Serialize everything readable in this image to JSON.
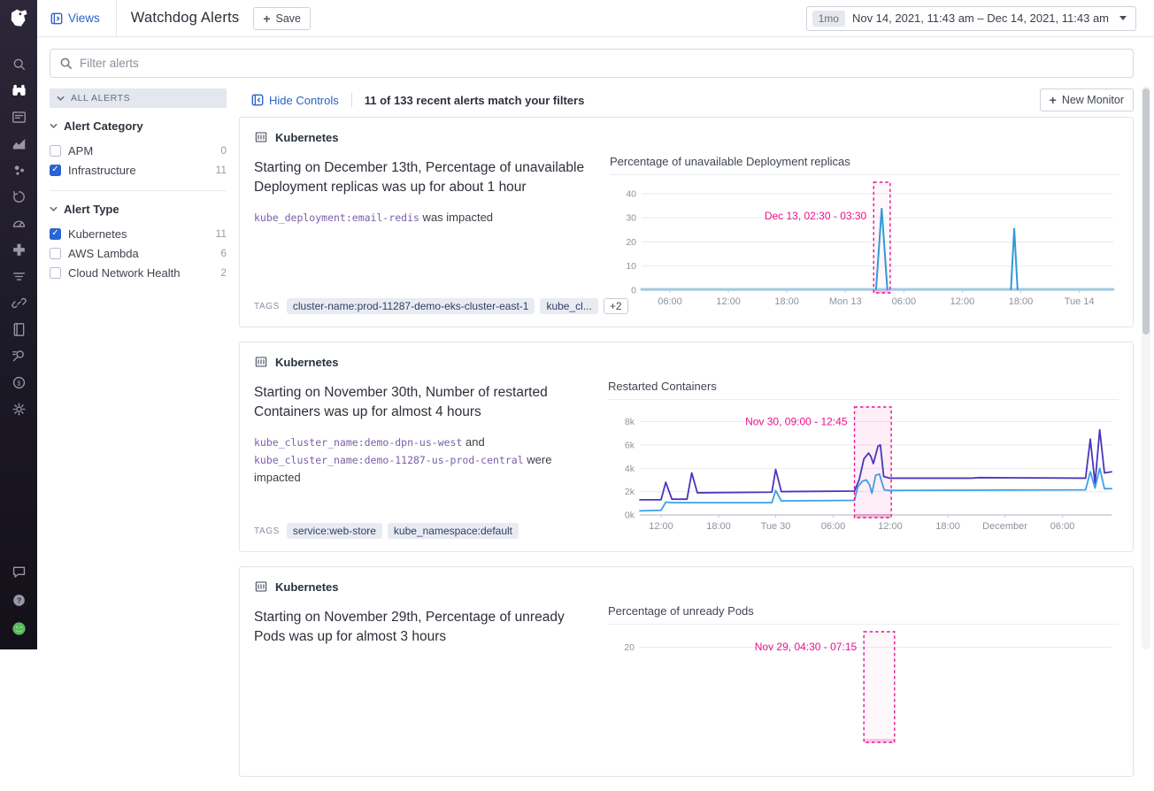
{
  "header": {
    "views_label": "Views",
    "title": "Watchdog Alerts",
    "save_label": "Save",
    "time_badge": "1mo",
    "time_range": "Nov 14, 2021, 11:43 am – Dec 14, 2021, 11:43 am"
  },
  "filter": {
    "placeholder": "Filter alerts"
  },
  "sidebar": {
    "active": "watchdog",
    "items": [
      "search",
      "watchdog",
      "dashboards",
      "metrics",
      "infrastructure",
      "monitors",
      "apm",
      "integrations",
      "logs",
      "synthetics",
      "notebooks",
      "security",
      "billing",
      "settings"
    ],
    "bottom_items": [
      "support-chat",
      "help",
      "avatar"
    ]
  },
  "facets": {
    "all_alerts_label": "ALL ALERTS",
    "sections": [
      {
        "title": "Alert Category",
        "items": [
          {
            "label": "APM",
            "count": "0",
            "checked": false
          },
          {
            "label": "Infrastructure",
            "count": "11",
            "checked": true
          }
        ]
      },
      {
        "title": "Alert Type",
        "items": [
          {
            "label": "Kubernetes",
            "count": "11",
            "checked": true
          },
          {
            "label": "AWS Lambda",
            "count": "6",
            "checked": false
          },
          {
            "label": "Cloud Network Health",
            "count": "2",
            "checked": false
          }
        ]
      }
    ]
  },
  "controls": {
    "hide_controls_label": "Hide Controls",
    "match_text": "11 of 133 recent alerts match your filters",
    "new_monitor_label": "New Monitor"
  },
  "alerts": [
    {
      "source": "Kubernetes",
      "title": "Starting on December 13th, Percentage of unavailable Deployment replicas was up for about 1 hour",
      "impact": [
        {
          "mono": "kube_deployment:email-redis",
          "text": " was impacted"
        }
      ],
      "tags_label": "TAGS",
      "tags": [
        "cluster-name:prod-11287-demo-eks-cluster-east-1",
        "kube_cl..."
      ],
      "tags_more": "+2"
    },
    {
      "source": "Kubernetes",
      "title": "Starting on November 30th, Number of restarted Containers was up for almost 4 hours",
      "impact": [
        {
          "mono": "kube_cluster_name:demo-dpn-us-west",
          "text": " and"
        },
        {
          "mono": "kube_cluster_name:demo-11287-us-prod-central",
          "text": " were impacted"
        }
      ],
      "tags_label": "TAGS",
      "tags": [
        "service:web-store",
        "kube_namespace:default"
      ]
    },
    {
      "source": "Kubernetes",
      "title": "Starting on November 29th, Percentage of unready Pods was up for almost 3 hours"
    }
  ],
  "colors": {
    "link_blue": "#2b63c7",
    "checkbox_blue": "#2a64d2",
    "anomaly_pink": "#ec128f",
    "line_blue": "#2f9bd6",
    "line_light_blue": "#a6cbe4",
    "line_purple": "#4a35bd",
    "line_sky": "#3e9ee8",
    "sidebar_bg": "#1c1926",
    "avatar_green": "#5cb85c"
  },
  "chart_data": [
    {
      "type": "line",
      "title": "Percentage of unavailable Deployment replicas",
      "ylim": [
        0,
        44
      ],
      "yticks": [
        [
          0,
          "0"
        ],
        [
          10,
          "10"
        ],
        [
          20,
          "20"
        ],
        [
          30,
          "30"
        ],
        [
          40,
          "40"
        ]
      ],
      "xticks": [
        [
          0.06,
          "06:00"
        ],
        [
          0.184,
          "12:00"
        ],
        [
          0.308,
          "18:00"
        ],
        [
          0.432,
          "Mon 13"
        ],
        [
          0.556,
          "06:00"
        ],
        [
          0.68,
          "12:00"
        ],
        [
          0.804,
          "18:00"
        ],
        [
          0.928,
          "Tue 14"
        ]
      ],
      "series": [
        {
          "name": "baseline",
          "color": "#a6cbe4",
          "width": 3,
          "points": [
            [
              0,
              0.35
            ],
            [
              1,
              0.35
            ]
          ]
        },
        {
          "name": "anomaly-spike-1",
          "color": "#2f9bd6",
          "width": 2,
          "points": [
            [
              0.497,
              0.35
            ],
            [
              0.509,
              33.8
            ],
            [
              0.521,
              0.35
            ]
          ]
        },
        {
          "name": "anomaly-spike-2",
          "color": "#2f9bd6",
          "width": 2,
          "points": [
            [
              0.783,
              0.35
            ],
            [
              0.79,
              25.5
            ],
            [
              0.797,
              0.35
            ]
          ]
        }
      ],
      "highlight": {
        "x1": 0.492,
        "x2": 0.527,
        "label": "Dec 13, 02:30 - 03:30",
        "label_y": 0.3
      }
    },
    {
      "type": "line",
      "title": "Restarted Containers",
      "ylim": [
        0,
        9.1
      ],
      "yticks": [
        [
          0,
          "0k"
        ],
        [
          2,
          "2k"
        ],
        [
          4,
          "4k"
        ],
        [
          6,
          "6k"
        ],
        [
          8,
          "8k"
        ]
      ],
      "xticks": [
        [
          0.045,
          "12:00"
        ],
        [
          0.167,
          "18:00"
        ],
        [
          0.288,
          "Tue 30"
        ],
        [
          0.41,
          "06:00"
        ],
        [
          0.531,
          "12:00"
        ],
        [
          0.653,
          "18:00"
        ],
        [
          0.774,
          "December"
        ],
        [
          0.896,
          "06:00"
        ]
      ],
      "series": [
        {
          "name": "kube_cluster_name:demo-dpn-us-west",
          "color": "#4a35bd",
          "width": 1.8,
          "points": [
            [
              0,
              1.3
            ],
            [
              0.045,
              1.3
            ],
            [
              0.055,
              2.8
            ],
            [
              0.068,
              1.35
            ],
            [
              0.1,
              1.35
            ],
            [
              0.11,
              3.6
            ],
            [
              0.122,
              1.9
            ],
            [
              0.28,
              1.95
            ],
            [
              0.288,
              3.9
            ],
            [
              0.3,
              2.0
            ],
            [
              0.455,
              2.05
            ],
            [
              0.465,
              3.0
            ],
            [
              0.475,
              4.8
            ],
            [
              0.485,
              5.3
            ],
            [
              0.49,
              5.0
            ],
            [
              0.495,
              4.4
            ],
            [
              0.505,
              5.9
            ],
            [
              0.51,
              6.0
            ],
            [
              0.517,
              3.3
            ],
            [
              0.53,
              3.15
            ],
            [
              0.7,
              3.15
            ],
            [
              0.72,
              3.2
            ],
            [
              0.945,
              3.15
            ],
            [
              0.955,
              6.5
            ],
            [
              0.965,
              2.7
            ],
            [
              0.975,
              7.3
            ],
            [
              0.985,
              3.6
            ],
            [
              1,
              3.7
            ]
          ]
        },
        {
          "name": "kube_cluster_name:demo-11287-us-prod-central",
          "color": "#3e9ee8",
          "width": 1.8,
          "points": [
            [
              0,
              0.35
            ],
            [
              0.045,
              0.4
            ],
            [
              0.055,
              1.1
            ],
            [
              0.068,
              1.05
            ],
            [
              0.28,
              1.05
            ],
            [
              0.288,
              2.1
            ],
            [
              0.3,
              1.2
            ],
            [
              0.455,
              1.25
            ],
            [
              0.462,
              2.4
            ],
            [
              0.472,
              2.9
            ],
            [
              0.48,
              3.0
            ],
            [
              0.487,
              2.6
            ],
            [
              0.492,
              1.85
            ],
            [
              0.5,
              3.4
            ],
            [
              0.508,
              3.5
            ],
            [
              0.518,
              2.15
            ],
            [
              0.53,
              2.1
            ],
            [
              0.945,
              2.15
            ],
            [
              0.955,
              3.7
            ],
            [
              0.965,
              2.3
            ],
            [
              0.975,
              4.0
            ],
            [
              0.985,
              2.25
            ],
            [
              1,
              2.25
            ]
          ]
        }
      ],
      "highlight": {
        "x1": 0.455,
        "x2": 0.533,
        "label": "Nov 30, 09:00 - 12:45",
        "label_y": 0.12,
        "fill": true
      }
    },
    {
      "type": "line",
      "title": "Percentage of unready Pods",
      "ylim": [
        0,
        23
      ],
      "yticks": [
        [
          20,
          "20"
        ]
      ],
      "xticks": [],
      "series": [],
      "highlight": {
        "x1": 0.475,
        "x2": 0.54,
        "label": "Nov 29, 04:30 - 07:15",
        "label_y": 0.125
      }
    }
  ]
}
